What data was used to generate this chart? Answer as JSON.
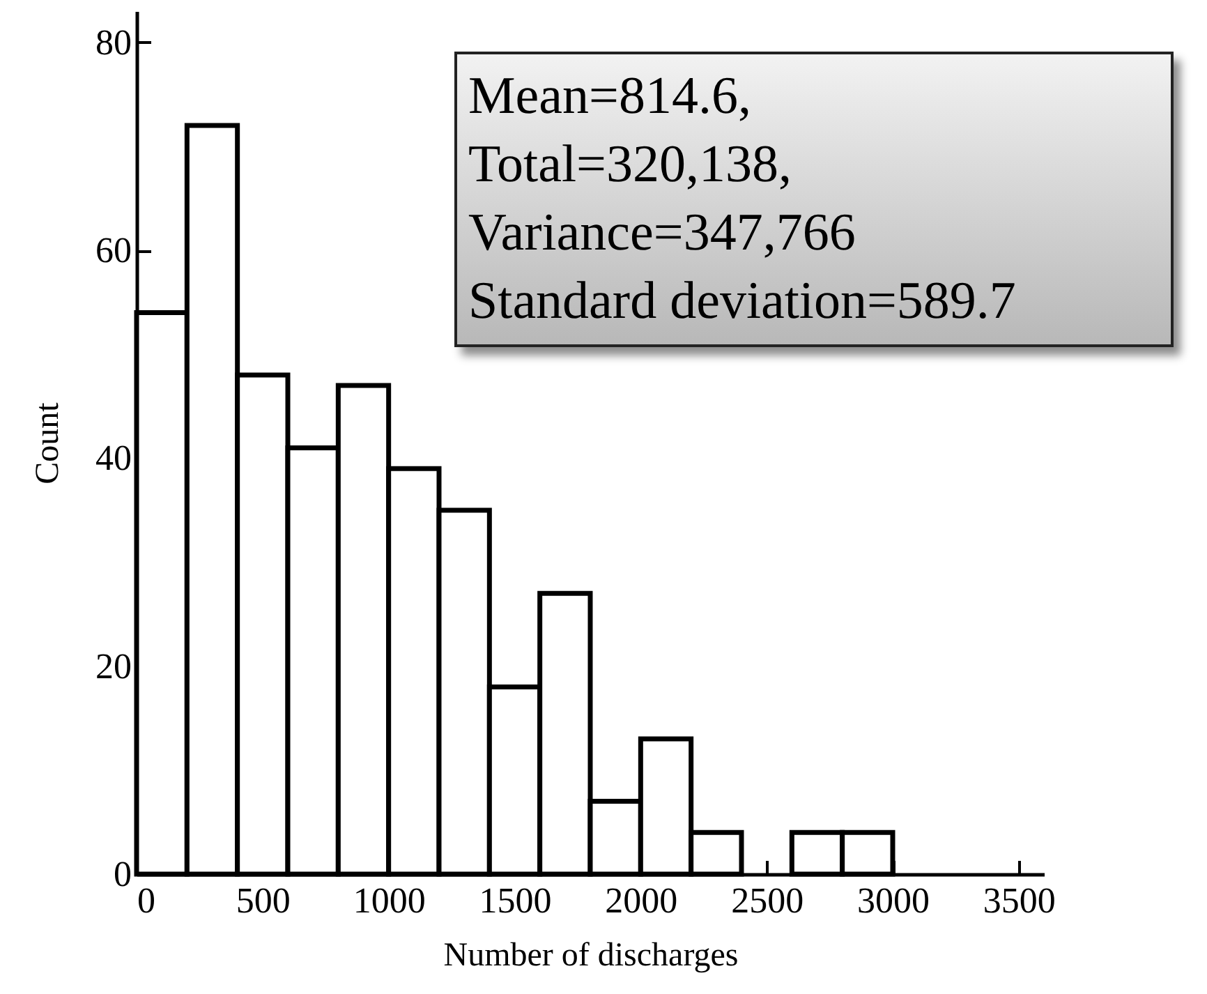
{
  "chart_data": {
    "type": "histogram",
    "xlabel": "Number of discharges",
    "ylabel": "Count",
    "bins": [
      0,
      200,
      400,
      600,
      800,
      1000,
      1200,
      1400,
      1600,
      1800,
      2000,
      2200,
      2400,
      2600,
      2800,
      3000
    ],
    "values": [
      54,
      72,
      48,
      41,
      47,
      39,
      35,
      18,
      27,
      7,
      13,
      4,
      0,
      4,
      4
    ],
    "color": "#ffffff",
    "xlim": [
      0,
      3600
    ],
    "xticks": [
      0,
      500,
      1000,
      1500,
      2000,
      2500,
      3000,
      3500
    ],
    "ylim": [
      0,
      83
    ],
    "yticks": [
      0,
      20,
      40,
      60,
      80
    ],
    "grid": false,
    "annotations": [
      "Mean=814.6,",
      "Total=320,138,",
      "Variance=347,766",
      "Standard deviation=589.7"
    ]
  }
}
